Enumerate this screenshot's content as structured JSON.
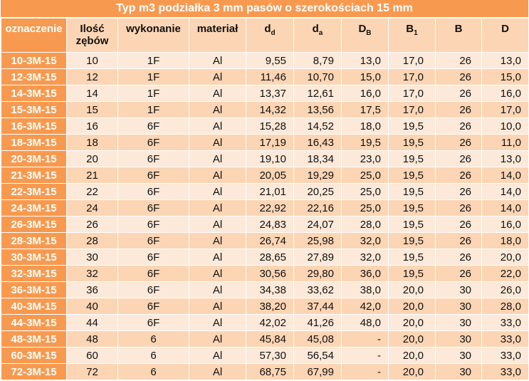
{
  "title": "Typ m3 podziałka 3 mm pasów o szerokościach 15 mm",
  "headers": {
    "code": "oznaczenie",
    "teeth_l1": "Ilość",
    "teeth_l2": "zębów",
    "version": "wykonanie",
    "material": "materiał",
    "dd_main": "d",
    "dd_sub": "d",
    "da_main": "d",
    "da_sub": "a",
    "db_main": "D",
    "db_sub": "B",
    "b1_main": "B",
    "b1_sub": "1",
    "b": "B",
    "d": "D"
  },
  "rows": [
    [
      "10-3M-15",
      "10",
      "1F",
      "Al",
      "9,55",
      "8,79",
      "13,0",
      "17,0",
      "26",
      "13,0"
    ],
    [
      "12-3M-15",
      "12",
      "1F",
      "Al",
      "11,46",
      "10,70",
      "15,0",
      "17,0",
      "26",
      "15,0"
    ],
    [
      "14-3M-15",
      "14",
      "1F",
      "Al",
      "13,37",
      "12,61",
      "16,0",
      "17,0",
      "26",
      "16,0"
    ],
    [
      "15-3M-15",
      "15",
      "1F",
      "Al",
      "14,32",
      "13,56",
      "17,5",
      "17,0",
      "26",
      "17,0"
    ],
    [
      "16-3M-15",
      "16",
      "6F",
      "Al",
      "15,28",
      "14,52",
      "18,0",
      "19,5",
      "26",
      "10,0"
    ],
    [
      "18-3M-15",
      "18",
      "6F",
      "Al",
      "17,19",
      "16,43",
      "19,5",
      "19,5",
      "26",
      "11,0"
    ],
    [
      "20-3M-15",
      "20",
      "6F",
      "Al",
      "19,10",
      "18,34",
      "23,0",
      "19,5",
      "26",
      "13,0"
    ],
    [
      "21-3M-15",
      "21",
      "6F",
      "Al",
      "20,05",
      "19,29",
      "25,0",
      "19,5",
      "26",
      "14,0"
    ],
    [
      "22-3M-15",
      "22",
      "6F",
      "Al",
      "21,01",
      "20,25",
      "25,0",
      "19,5",
      "26",
      "14,0"
    ],
    [
      "24-3M-15",
      "24",
      "6F",
      "Al",
      "22,92",
      "22,16",
      "25,0",
      "19,5",
      "26",
      "14,0"
    ],
    [
      "26-3M-15",
      "26",
      "6F",
      "Al",
      "24,83",
      "24,07",
      "28,0",
      "19,5",
      "26",
      "16,0"
    ],
    [
      "28-3M-15",
      "28",
      "6F",
      "Al",
      "26,74",
      "25,98",
      "32,0",
      "19,5",
      "26",
      "18,0"
    ],
    [
      "30-3M-15",
      "30",
      "6F",
      "Al",
      "28,65",
      "27,89",
      "32,0",
      "19,5",
      "26",
      "20,0"
    ],
    [
      "32-3M-15",
      "32",
      "6F",
      "Al",
      "30,56",
      "29,80",
      "36,0",
      "19,5",
      "26",
      "22,0"
    ],
    [
      "36-3M-15",
      "36",
      "6F",
      "Al",
      "34,38",
      "33,62",
      "38,0",
      "20,0",
      "30",
      "26,0"
    ],
    [
      "40-3M-15",
      "40",
      "6F",
      "Al",
      "38,20",
      "37,44",
      "42,0",
      "20,0",
      "30",
      "28,0"
    ],
    [
      "44-3M-15",
      "44",
      "6F",
      "Al",
      "42,02",
      "41,26",
      "48,0",
      "20,0",
      "30",
      "33,0"
    ],
    [
      "48-3M-15",
      "48",
      "6",
      "Al",
      "45,84",
      "45,08",
      "-",
      "20,0",
      "30",
      "33,0"
    ],
    [
      "60-3M-15",
      "60",
      "6",
      "Al",
      "57,30",
      "56,54",
      "-",
      "20,0",
      "30",
      "33,0"
    ],
    [
      "72-3M-15",
      "72",
      "6",
      "Al",
      "68,75",
      "67,99",
      "-",
      "20,0",
      "30",
      "33,0"
    ]
  ]
}
